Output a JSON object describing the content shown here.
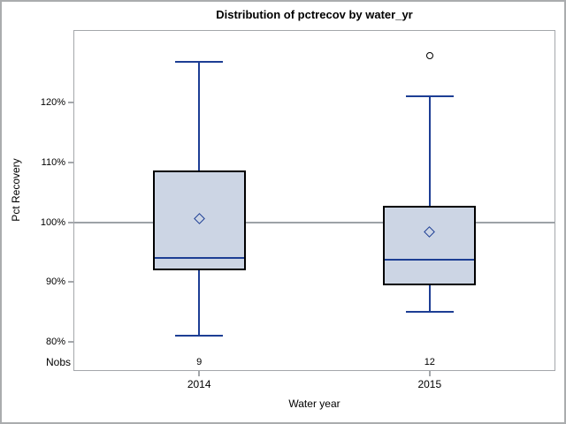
{
  "chart_data": {
    "type": "boxplot",
    "title": "Distribution of pctrecov by water_yr",
    "xlabel": "Water year",
    "ylabel": "Pct Recovery",
    "ylim": [
      75.3,
      132.0
    ],
    "grid": "off",
    "reference_line_y": 100,
    "nobs_label": "Nobs",
    "yticks": [
      {
        "value": 120,
        "label": "120%"
      },
      {
        "value": 110,
        "label": "110%"
      },
      {
        "value": 100,
        "label": "100%"
      },
      {
        "value": 90,
        "label": "90%"
      },
      {
        "value": 80,
        "label": "80%"
      }
    ],
    "groups": [
      {
        "category": "2014",
        "nobs": "9",
        "whisker_low": 81,
        "q1": 92,
        "median": 94,
        "q3": 108.7,
        "whisker_high": 126.8,
        "mean": 100.6,
        "outliers": []
      },
      {
        "category": "2015",
        "nobs": "12",
        "whisker_low": 85,
        "q1": 89.5,
        "median": 93.7,
        "q3": 102.7,
        "whisker_high": 121,
        "mean": 98.4,
        "outliers": [
          127.9
        ]
      }
    ]
  },
  "colors": {
    "box_fill": "#ccd5e4",
    "box_border": "#000000",
    "box_line": "#1d3e94",
    "frame": "#a4a7ab",
    "reference_line": "#9da2a7",
    "background": "#ffffff",
    "text": "#000000"
  }
}
